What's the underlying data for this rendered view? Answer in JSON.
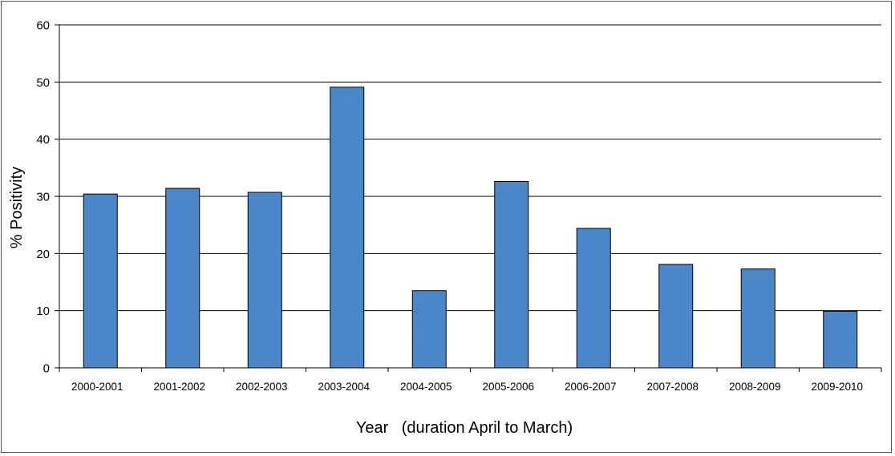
{
  "chart_data": {
    "type": "bar",
    "categories": [
      "2000-2001",
      "2001-2002",
      "2002-2003",
      "2003-2004",
      "2004-2005",
      "2005-2006",
      "2006-2007",
      "2007-2008",
      "2008-2009",
      "2009-2010"
    ],
    "values": [
      30.4,
      31.4,
      30.7,
      49.1,
      13.5,
      32.6,
      24.4,
      18.1,
      17.3,
      9.9
    ],
    "title": "",
    "xlabel": "Year",
    "xlabel_note": "(duration April to March)",
    "ylabel": "% Positivity",
    "ylim": [
      0,
      60
    ],
    "yticks": [
      0,
      10,
      20,
      30,
      40,
      50,
      60
    ],
    "grid": true,
    "legend": "none",
    "bar_color": "#4a86c8",
    "bar_outline": "#000000"
  }
}
